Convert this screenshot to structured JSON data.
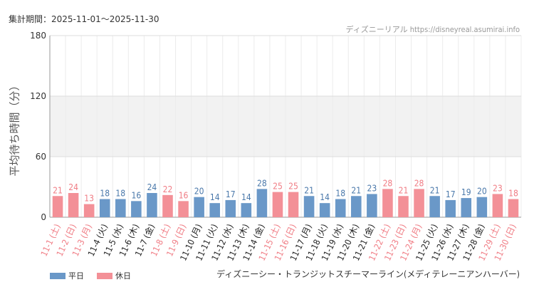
{
  "header": {
    "period": "集計期間：2025-11-01～2025-11-30",
    "credit": "ディズニーリアル https://disneyreal.asumirai.info"
  },
  "legend": [
    {
      "label": "平日",
      "color": "#6a98c8"
    },
    {
      "label": "休日",
      "color": "#f39097"
    }
  ],
  "chart_data": {
    "type": "bar",
    "title": "ディズニーシー・トランジットスチーマーライン(メディテレーニアンハーバー)",
    "ylabel": "平均待ち時間（分）",
    "xlabel": "",
    "ylim": [
      0,
      180
    ],
    "yticks": [
      0,
      60,
      120,
      180
    ],
    "grid": true,
    "legend_position": "bottom-left",
    "colors": {
      "weekday": "#6a98c8",
      "holiday": "#f39097",
      "weekday_label": "#4a78aa",
      "holiday_label": "#f07c84"
    },
    "categories": [
      "11-1 (土)",
      "11-2 (日)",
      "11-3 (月)",
      "11-4 (火)",
      "11-5 (水)",
      "11-6 (木)",
      "11-7 (金)",
      "11-8 (土)",
      "11-9 (日)",
      "11-10 (月)",
      "11-11 (火)",
      "11-12 (水)",
      "11-13 (木)",
      "11-14 (金)",
      "11-15 (土)",
      "11-16 (日)",
      "11-17 (月)",
      "11-18 (火)",
      "11-19 (水)",
      "11-20 (木)",
      "11-21 (金)",
      "11-22 (土)",
      "11-23 (日)",
      "11-24 (月)",
      "11-25 (火)",
      "11-26 (水)",
      "11-27 (木)",
      "11-28 (金)",
      "11-29 (土)",
      "11-30 (日)"
    ],
    "values": [
      21,
      24,
      13,
      18,
      18,
      16,
      24,
      22,
      16,
      20,
      14,
      17,
      14,
      28,
      25,
      25,
      21,
      14,
      18,
      21,
      23,
      28,
      21,
      28,
      21,
      17,
      19,
      20,
      23,
      18
    ],
    "day_type": [
      "holiday",
      "holiday",
      "holiday",
      "weekday",
      "weekday",
      "weekday",
      "weekday",
      "holiday",
      "holiday",
      "weekday",
      "weekday",
      "weekday",
      "weekday",
      "weekday",
      "holiday",
      "holiday",
      "weekday",
      "weekday",
      "weekday",
      "weekday",
      "weekday",
      "holiday",
      "holiday",
      "holiday",
      "weekday",
      "weekday",
      "weekday",
      "weekday",
      "holiday",
      "holiday"
    ]
  }
}
